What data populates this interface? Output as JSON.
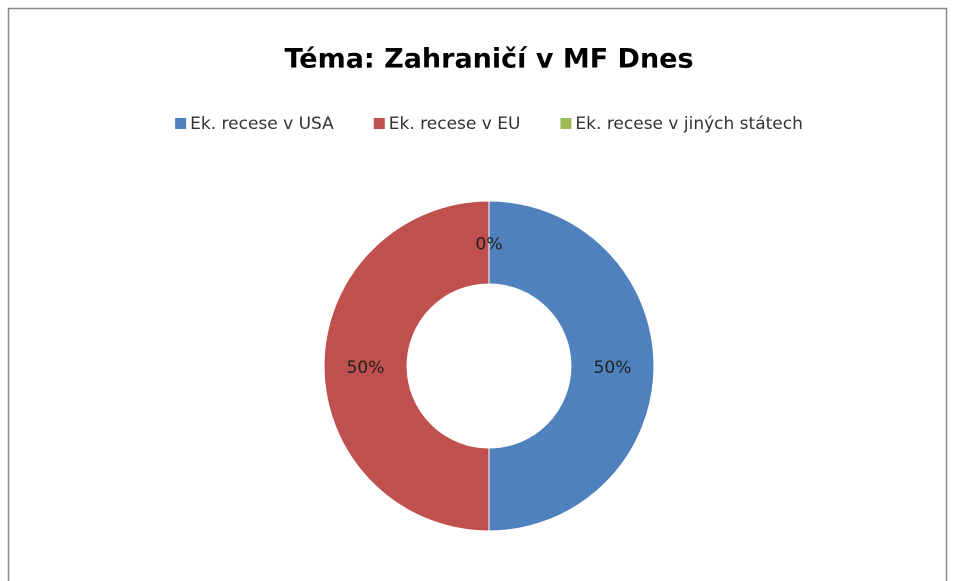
{
  "chart_data": {
    "type": "donut",
    "title": "Téma: Zahraničí v MF Dnes",
    "categories": [
      "Ek. recese v USA",
      "Ek. recese v EU",
      "Ek. recese v jiných státech"
    ],
    "values": [
      50,
      50,
      0
    ],
    "value_labels": [
      "50%",
      "50%",
      "0%"
    ],
    "colors": [
      "#4f81bd",
      "#c0504d",
      "#9bbb59"
    ],
    "legend": "top"
  }
}
